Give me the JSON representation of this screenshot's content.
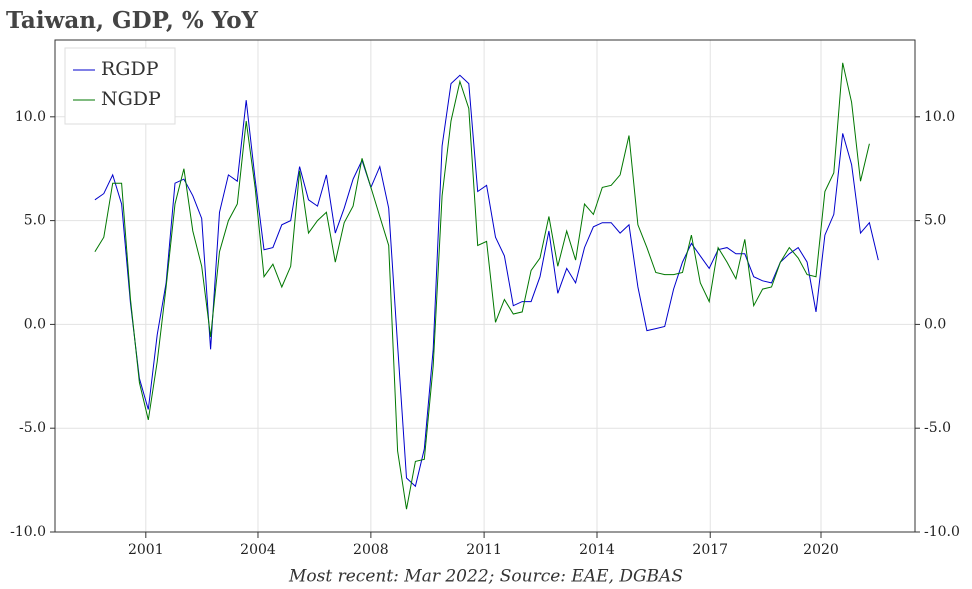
{
  "chart_data": {
    "type": "line",
    "title": "Taiwan, GDP, % YoY",
    "footnote": "Most recent: Mar 2022; Source: EAE, DGBAS",
    "x": [
      2000,
      2000.25,
      2000.5,
      2000.75,
      2001,
      2001.25,
      2001.5,
      2001.75,
      2002,
      2002.25,
      2002.5,
      2002.75,
      2003,
      2003.25,
      2003.5,
      2003.75,
      2004,
      2004.25,
      2004.5,
      2004.75,
      2005,
      2005.25,
      2005.5,
      2005.75,
      2006,
      2006.25,
      2006.5,
      2006.75,
      2007,
      2007.25,
      2007.5,
      2007.75,
      2008,
      2008.25,
      2008.5,
      2008.75,
      2009,
      2009.25,
      2009.5,
      2009.75,
      2010,
      2010.25,
      2010.5,
      2010.75,
      2011,
      2011.25,
      2011.5,
      2011.75,
      2012,
      2012.25,
      2012.5,
      2012.75,
      2013,
      2013.25,
      2013.5,
      2013.75,
      2014,
      2014.25,
      2014.5,
      2014.75,
      2015,
      2015.25,
      2015.5,
      2015.75,
      2016,
      2016.25,
      2016.5,
      2016.75,
      2017,
      2017.25,
      2017.5,
      2017.75,
      2018,
      2018.25,
      2018.5,
      2018.75,
      2019,
      2019.25,
      2019.5,
      2019.75,
      2020,
      2020.25,
      2020.5,
      2020.75,
      2021,
      2021.25,
      2021.5,
      2021.75,
      2022
    ],
    "series": [
      {
        "name": "RGDP",
        "color": "#0000cc",
        "values": [
          6.0,
          6.3,
          7.2,
          5.8,
          1.0,
          -2.6,
          -4.1,
          -0.5,
          2.0,
          6.8,
          7.0,
          6.2,
          5.1,
          -1.2,
          5.4,
          7.2,
          6.9,
          10.8,
          7.0,
          3.6,
          3.7,
          4.8,
          5.0,
          7.6,
          6.0,
          5.7,
          7.2,
          4.4,
          5.6,
          7.0,
          7.9,
          6.6,
          7.6,
          5.6,
          -1.0,
          -7.4,
          -7.8,
          -6.0,
          -1.2,
          8.6,
          11.6,
          12.0,
          11.6,
          6.4,
          6.7,
          4.2,
          3.3,
          0.9,
          1.1,
          1.1,
          2.3,
          4.5,
          1.5,
          2.7,
          2.0,
          3.7,
          4.7,
          4.9,
          4.9,
          4.4,
          4.8,
          1.8,
          -0.3,
          -0.2,
          -0.1,
          1.7,
          3.0,
          3.9,
          3.3,
          2.7,
          3.6,
          3.7,
          3.4,
          3.4,
          2.3,
          2.1,
          2.0,
          3.0,
          3.4,
          3.7,
          3.0,
          0.6,
          4.3,
          5.3,
          9.2,
          7.7,
          4.4,
          4.9,
          3.1
        ]
      },
      {
        "name": "NGDP",
        "color": "#007700",
        "values": [
          3.5,
          4.2,
          6.8,
          6.8,
          1.2,
          -2.8,
          -4.6,
          -1.8,
          1.8,
          5.8,
          7.5,
          4.5,
          2.8,
          -0.6,
          3.5,
          5.0,
          5.8,
          9.8,
          6.6,
          2.3,
          2.9,
          1.8,
          2.8,
          7.4,
          4.4,
          5.0,
          5.4,
          3.0,
          4.9,
          5.7,
          8.0,
          6.6,
          5.2,
          3.8,
          -6.1,
          -8.9,
          -6.6,
          -6.5,
          -2.0,
          6.2,
          9.8,
          11.7,
          10.4,
          3.8,
          4.0,
          0.1,
          1.2,
          0.5,
          0.6,
          2.6,
          3.2,
          5.2,
          2.8,
          4.5,
          3.1,
          5.8,
          5.3,
          6.6,
          6.7,
          7.2,
          9.1,
          4.8,
          3.7,
          2.5,
          2.4,
          2.4,
          2.5,
          4.3,
          2.0,
          1.1,
          3.7,
          3.0,
          2.2,
          4.1,
          0.9,
          1.7,
          1.8,
          3.0,
          3.7,
          3.2,
          2.4,
          2.3,
          6.4,
          7.3,
          12.6,
          10.7,
          6.9,
          8.7,
          null
        ]
      }
    ],
    "xlim": [
      1998.88,
      2023.03
    ],
    "xticks": [
      {
        "value": 2001.43,
        "label": "2001"
      },
      {
        "value": 2004.58,
        "label": "2004"
      },
      {
        "value": 2007.75,
        "label": "2008"
      },
      {
        "value": 2010.93,
        "label": "2011"
      },
      {
        "value": 2014.1,
        "label": "2014"
      },
      {
        "value": 2017.28,
        "label": "2017"
      },
      {
        "value": 2020.39,
        "label": "2020"
      }
    ],
    "ylim": [
      -10,
      13.7
    ],
    "yticks": [
      {
        "value": -10,
        "label": "-10.0"
      },
      {
        "value": -5,
        "label": "-5.0"
      },
      {
        "value": 0,
        "label": "0.0"
      },
      {
        "value": 5,
        "label": "5.0"
      },
      {
        "value": 10,
        "label": "10.0"
      }
    ],
    "grid": true,
    "legend": "upper left"
  }
}
